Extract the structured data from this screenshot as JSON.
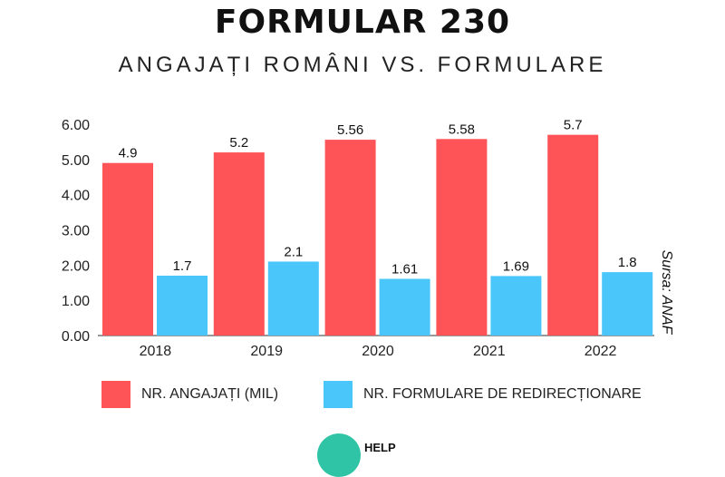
{
  "header": {
    "title": "FORMULAR 230",
    "subtitle": "ANGAJAȚI ROMÂNI VS. FORMULARE"
  },
  "source": "Sursa: ANAF",
  "logo_text": "HELP",
  "chart_data": {
    "type": "bar",
    "categories": [
      "2018",
      "2019",
      "2020",
      "2021",
      "2022"
    ],
    "series": [
      {
        "name": "NR. ANGAJAȚI (MIL)",
        "color": "#ff5457",
        "values": [
          4.9,
          5.2,
          5.56,
          5.58,
          5.7
        ],
        "labels": [
          "4.9",
          "5.2",
          "5.56",
          "5.58",
          "5.7"
        ]
      },
      {
        "name": "NR. FORMULARE DE REDIRECȚIONARE",
        "color": "#4bc6fb",
        "values": [
          1.7,
          2.1,
          1.61,
          1.69,
          1.8
        ],
        "labels": [
          "1.7",
          "2.1",
          "1.61",
          "1.69",
          "1.8"
        ]
      }
    ],
    "ylim": [
      0,
      6
    ],
    "yticks": [
      "0.00",
      "1.00",
      "2.00",
      "3.00",
      "4.00",
      "5.00",
      "6.00"
    ],
    "grid": false,
    "legend_position": "bottom"
  }
}
